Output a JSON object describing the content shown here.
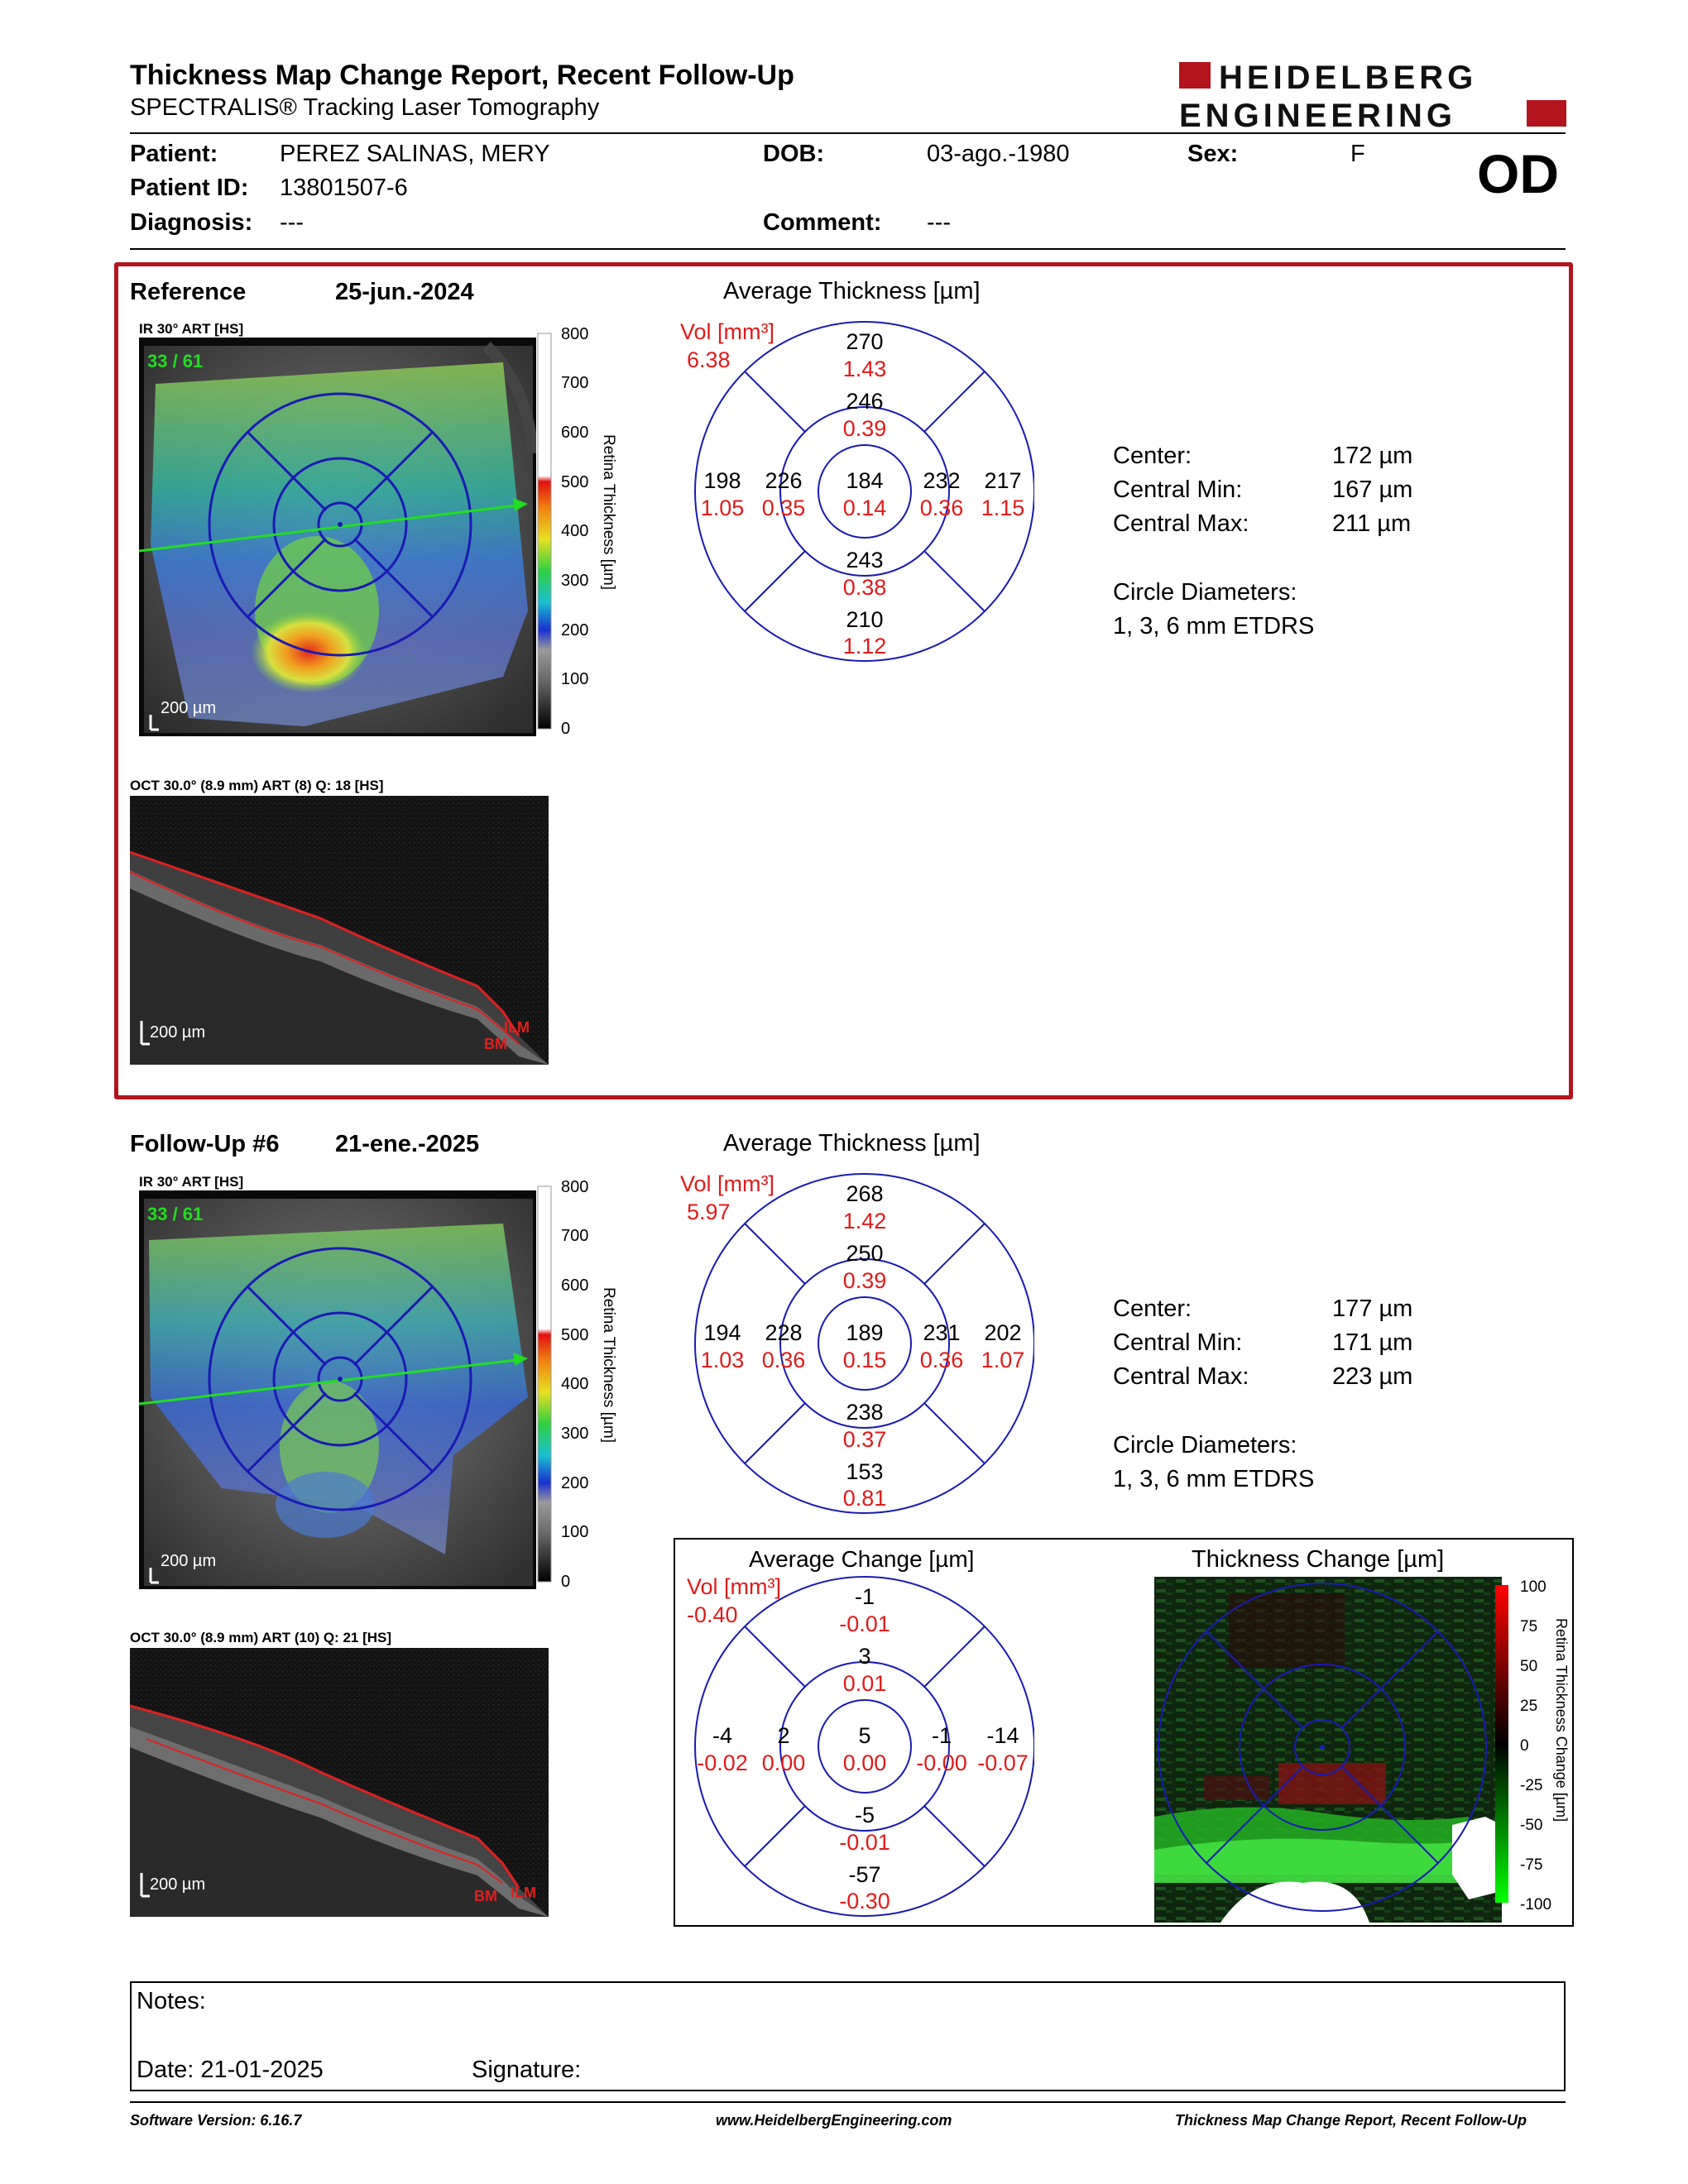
{
  "header": {
    "title": "Thickness Map Change Report, Recent Follow-Up",
    "subtitle": "SPECTRALIS® Tracking Laser Tomography",
    "logo_line1": "HEIDELBERG",
    "logo_line2": "ENGINEERING"
  },
  "patient": {
    "patient_label": "Patient:",
    "patient_value": "PEREZ SALINAS, MERY",
    "id_label": "Patient ID:",
    "id_value": "13801507-6",
    "diagnosis_label": "Diagnosis:",
    "diagnosis_value": "---",
    "dob_label": "DOB:",
    "dob_value": "03-ago.-1980",
    "comment_label": "Comment:",
    "comment_value": "---",
    "sex_label": "Sex:",
    "sex_value": "F",
    "eye": "OD"
  },
  "colors": {
    "accent_red": "#b3141d",
    "ring_blue": "#1a1ab4",
    "vol_red": "#e01b1b",
    "arrow_green": "#22dd22"
  },
  "reference": {
    "label": "Reference",
    "date": "25-jun.-2024",
    "ir_label": "IR 30° ART [HS]",
    "frame": "33 / 61",
    "scale_label": "200 µm",
    "colorbar_ticks": [
      "800",
      "700",
      "600",
      "500",
      "400",
      "300",
      "200",
      "100",
      "0"
    ],
    "colorbar_title": "Retina Thickness [µm]",
    "oct_label": "OCT 30.0° (8.9 mm) ART (8) Q: 18 [HS]",
    "oct_scale": "200 µm",
    "ilm": "ILM",
    "bm": "BM",
    "avg_title": "Average Thickness [µm]",
    "vol_label": "Vol [mm³]",
    "vol_value": "6.38",
    "grid": {
      "superior_outer": {
        "t": "270",
        "v": "1.43"
      },
      "superior_inner": {
        "t": "246",
        "v": "0.39"
      },
      "temporal_outer": {
        "t": "198",
        "v": "1.05"
      },
      "temporal_inner": {
        "t": "226",
        "v": "0.35"
      },
      "center": {
        "t": "184",
        "v": "0.14"
      },
      "nasal_inner": {
        "t": "232",
        "v": "0.36"
      },
      "nasal_outer": {
        "t": "217",
        "v": "1.15"
      },
      "inferior_inner": {
        "t": "243",
        "v": "0.38"
      },
      "inferior_outer": {
        "t": "210",
        "v": "1.12"
      }
    },
    "stats": {
      "center_label": "Center:",
      "center_value": "172 µm",
      "min_label": "Central Min:",
      "min_value": "167 µm",
      "max_label": "Central Max:",
      "max_value": "211 µm",
      "diam_label": "Circle Diameters:",
      "diam_value": "1, 3, 6 mm ETDRS"
    }
  },
  "followup": {
    "label": "Follow-Up #6",
    "date": "21-ene.-2025",
    "ir_label": "IR 30° ART [HS]",
    "frame": "33 / 61",
    "scale_label": "200 µm",
    "colorbar_ticks": [
      "800",
      "700",
      "600",
      "500",
      "400",
      "300",
      "200",
      "100",
      "0"
    ],
    "colorbar_title": "Retina Thickness [µm]",
    "oct_label": "OCT 30.0° (8.9 mm) ART (10) Q: 21 [HS]",
    "oct_scale": "200 µm",
    "ilm": "ILM",
    "bm": "BM",
    "avg_title": "Average Thickness [µm]",
    "vol_label": "Vol [mm³]",
    "vol_value": "5.97",
    "grid": {
      "superior_outer": {
        "t": "268",
        "v": "1.42"
      },
      "superior_inner": {
        "t": "250",
        "v": "0.39"
      },
      "temporal_outer": {
        "t": "194",
        "v": "1.03"
      },
      "temporal_inner": {
        "t": "228",
        "v": "0.36"
      },
      "center": {
        "t": "189",
        "v": "0.15"
      },
      "nasal_inner": {
        "t": "231",
        "v": "0.36"
      },
      "nasal_outer": {
        "t": "202",
        "v": "1.07"
      },
      "inferior_inner": {
        "t": "238",
        "v": "0.37"
      },
      "inferior_outer": {
        "t": "153",
        "v": "0.81"
      }
    },
    "stats": {
      "center_label": "Center:",
      "center_value": "177 µm",
      "min_label": "Central Min:",
      "min_value": "171 µm",
      "max_label": "Central Max:",
      "max_value": "223 µm",
      "diam_label": "Circle Diameters:",
      "diam_value": "1, 3, 6 mm ETDRS"
    }
  },
  "change": {
    "avg_title": "Average Change [µm]",
    "vol_label": "Vol [mm³]",
    "vol_value": "-0.40",
    "grid": {
      "superior_outer": {
        "t": "-1",
        "v": "-0.01"
      },
      "superior_inner": {
        "t": "3",
        "v": "0.01"
      },
      "temporal_outer": {
        "t": "-4",
        "v": "-0.02"
      },
      "temporal_inner": {
        "t": "2",
        "v": "0.00"
      },
      "center": {
        "t": "5",
        "v": "0.00"
      },
      "nasal_inner": {
        "t": "-1",
        "v": "-0.00"
      },
      "nasal_outer": {
        "t": "-14",
        "v": "-0.07"
      },
      "inferior_inner": {
        "t": "-5",
        "v": "-0.01"
      },
      "inferior_outer": {
        "t": "-57",
        "v": "-0.30"
      }
    },
    "map_title": "Thickness Change [µm]",
    "colorbar_ticks": [
      "100",
      "75",
      "50",
      "25",
      "0",
      "-25",
      "-50",
      "-75",
      "-100"
    ],
    "colorbar_title": "Retina Thickness Change [µm]"
  },
  "notes": {
    "notes_label": "Notes:",
    "date_label": "Date: 21-01-2025",
    "signature_label": "Signature:"
  },
  "footer": {
    "software": "Software Version: 6.16.7",
    "url": "www.HeidelbergEngineering.com",
    "report": "Thickness Map Change Report, Recent Follow-Up"
  }
}
